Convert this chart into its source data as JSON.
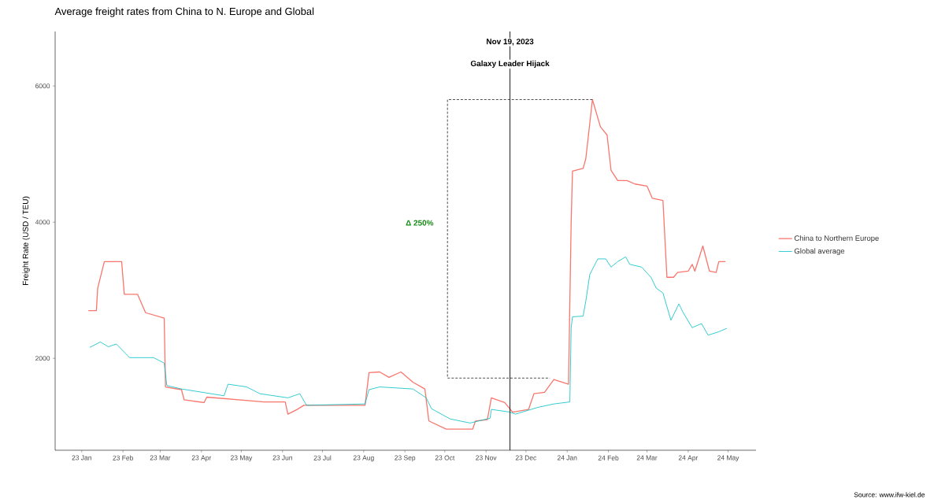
{
  "chart_data": {
    "type": "line",
    "title": "Average freight rates from China to N. Europe and Global",
    "ylabel": "Freight Rate (USD / TEU)",
    "xlim": [
      "2022-12-12",
      "2024-05-22"
    ],
    "ylim": [
      650,
      6800
    ],
    "yticks": [
      2000,
      4000,
      6000
    ],
    "xticks": [
      {
        "value": "2023-01-01",
        "label": "23 Jan"
      },
      {
        "value": "2023-02-01",
        "label": "23 Feb"
      },
      {
        "value": "2023-03-01",
        "label": "23 Mar"
      },
      {
        "value": "2023-04-01",
        "label": "23 Apr"
      },
      {
        "value": "2023-05-01",
        "label": "23 May"
      },
      {
        "value": "2023-06-01",
        "label": "23 Jun"
      },
      {
        "value": "2023-07-01",
        "label": "23 Jul"
      },
      {
        "value": "2023-08-01",
        "label": "23 Aug"
      },
      {
        "value": "2023-09-01",
        "label": "23 Sep"
      },
      {
        "value": "2023-10-01",
        "label": "23 Oct"
      },
      {
        "value": "2023-11-01",
        "label": "23 Nov"
      },
      {
        "value": "2023-12-01",
        "label": "23 Dec"
      },
      {
        "value": "2024-01-01",
        "label": "24 Jan"
      },
      {
        "value": "2024-02-01",
        "label": "24 Feb"
      },
      {
        "value": "2024-03-01",
        "label": "24 Mar"
      },
      {
        "value": "2024-04-01",
        "label": "24 Apr"
      },
      {
        "value": "2024-05-01",
        "label": "24 May"
      }
    ],
    "legend": "right",
    "series": [
      {
        "name": "China to Northern Europe",
        "color": "#f8766d",
        "x": [
          "2023-01-06",
          "2023-01-12",
          "2023-01-13",
          "2023-01-18",
          "2023-01-31",
          "2023-02-02",
          "2023-02-12",
          "2023-02-18",
          "2023-03-04",
          "2023-03-05",
          "2023-03-17",
          "2023-03-19",
          "2023-04-03",
          "2023-04-05",
          "2023-05-18",
          "2023-06-03",
          "2023-06-05",
          "2023-06-12",
          "2023-06-17",
          "2023-07-20",
          "2023-08-02",
          "2023-08-05",
          "2023-08-13",
          "2023-08-20",
          "2023-08-29",
          "2023-09-07",
          "2023-09-16",
          "2023-09-19",
          "2023-10-02",
          "2023-10-22",
          "2023-10-24",
          "2023-11-02",
          "2023-11-05",
          "2023-11-15",
          "2023-11-21",
          "2023-12-03",
          "2023-12-07",
          "2023-12-15",
          "2023-12-22",
          "2024-01-02",
          "2024-01-04",
          "2024-01-05",
          "2024-01-13",
          "2024-01-15",
          "2024-01-20",
          "2024-01-26",
          "2024-01-31",
          "2024-02-03",
          "2024-02-08",
          "2024-02-15",
          "2024-02-21",
          "2024-03-01",
          "2024-03-05",
          "2024-03-13",
          "2024-03-16",
          "2024-03-21",
          "2024-03-24",
          "2024-04-01",
          "2024-04-04",
          "2024-04-06",
          "2024-04-12",
          "2024-04-17",
          "2024-04-22",
          "2024-04-24",
          "2024-04-29"
        ],
        "values": [
          2700,
          2700,
          3030,
          3420,
          3420,
          2940,
          2940,
          2670,
          2590,
          1580,
          1540,
          1390,
          1350,
          1430,
          1360,
          1360,
          1180,
          1250,
          1310,
          1310,
          1310,
          1790,
          1800,
          1720,
          1800,
          1650,
          1550,
          1080,
          960,
          960,
          1080,
          1100,
          1420,
          1350,
          1210,
          1250,
          1480,
          1500,
          1690,
          1620,
          4000,
          4750,
          4790,
          4930,
          5800,
          5400,
          5280,
          4760,
          4610,
          4610,
          4560,
          4530,
          4350,
          4320,
          3190,
          3190,
          3260,
          3280,
          3380,
          3280,
          3650,
          3280,
          3260,
          3420,
          3420
        ]
      },
      {
        "name": "Global average",
        "color": "#00bfc4",
        "x": [
          "2023-01-07",
          "2023-01-15",
          "2023-01-21",
          "2023-01-27",
          "2023-02-06",
          "2023-02-24",
          "2023-03-04",
          "2023-03-06",
          "2023-03-17",
          "2023-04-18",
          "2023-04-21",
          "2023-05-05",
          "2023-05-15",
          "2023-06-05",
          "2023-06-14",
          "2023-06-19",
          "2023-08-02",
          "2023-08-05",
          "2023-08-13",
          "2023-09-07",
          "2023-09-17",
          "2023-09-21",
          "2023-10-05",
          "2023-10-20",
          "2023-11-04",
          "2023-11-05",
          "2023-11-19",
          "2023-11-23",
          "2023-12-10",
          "2023-12-22",
          "2024-01-03",
          "2024-01-04",
          "2024-01-05",
          "2024-01-13",
          "2024-01-15",
          "2024-01-18",
          "2024-01-24",
          "2024-01-30",
          "2024-02-03",
          "2024-02-08",
          "2024-02-14",
          "2024-02-17",
          "2024-02-26",
          "2024-03-04",
          "2024-03-08",
          "2024-03-13",
          "2024-03-19",
          "2024-03-25",
          "2024-03-28",
          "2024-04-04",
          "2024-04-11",
          "2024-04-16",
          "2024-04-24",
          "2024-04-30"
        ],
        "values": [
          2160,
          2240,
          2170,
          2210,
          2010,
          2010,
          1930,
          1600,
          1550,
          1450,
          1620,
          1580,
          1480,
          1420,
          1480,
          1310,
          1330,
          1540,
          1580,
          1550,
          1420,
          1260,
          1110,
          1050,
          1120,
          1250,
          1210,
          1180,
          1280,
          1330,
          1360,
          2450,
          2610,
          2620,
          2840,
          3230,
          3460,
          3460,
          3340,
          3420,
          3490,
          3380,
          3340,
          3190,
          3030,
          2960,
          2560,
          2800,
          2680,
          2450,
          2510,
          2340,
          2390,
          2440
        ]
      },
      {
        "color": "#000000",
        "line_style": "dashed",
        "x": [
          "2024-01-20",
          "2023-10-03",
          "2023-10-03",
          "2023-12-19"
        ],
        "values": [
          5800,
          5800,
          1710,
          1710
        ]
      }
    ],
    "ref_lines": [
      {
        "axis": "x",
        "value": "2023-11-19",
        "label": "Nov 19, 2023",
        "color": "#000000"
      }
    ],
    "annotations": [
      {
        "text": "Galaxy Leader Hijack",
        "x": "2023-11-19",
        "y": 6320
      },
      "Δ 250%",
      "Source: www.ifw-kiel.de"
    ]
  }
}
